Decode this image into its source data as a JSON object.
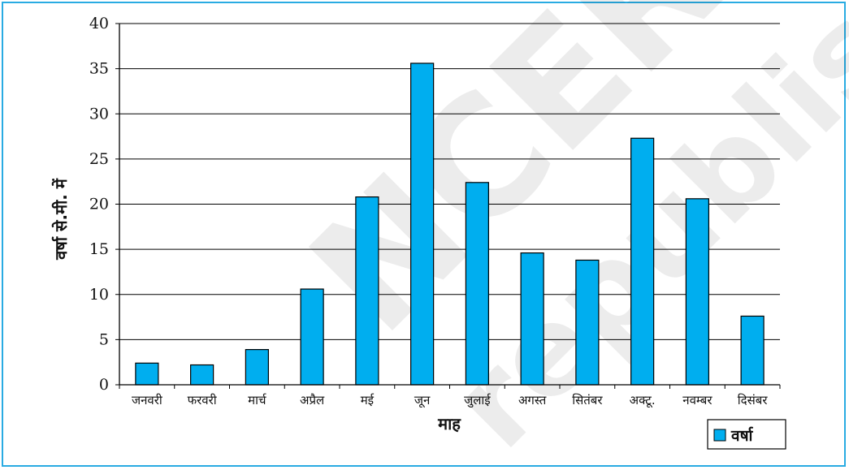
{
  "chart_data": {
    "type": "bar",
    "categories": [
      "जनवरी",
      "फरवरी",
      "मार्च",
      "अप्रैल",
      "मई",
      "जून",
      "जुलाई",
      "अगस्त",
      "सितंबर",
      "अक्टू.",
      "नवम्बर",
      "दिसंबर"
    ],
    "series": [
      {
        "name": "वर्षा",
        "values": [
          2.4,
          2.2,
          3.9,
          10.6,
          20.8,
          35.6,
          22.4,
          14.6,
          13.8,
          27.3,
          20.6,
          7.6
        ],
        "color": "#00aeef"
      }
    ],
    "xlabel": "माह",
    "ylabel": "वर्षा से.मी. में",
    "ylim": [
      0,
      40
    ],
    "yticks": [
      0,
      5,
      10,
      15,
      20,
      25,
      30,
      35,
      40
    ],
    "grid": true,
    "legend_position": "bottom-right",
    "watermark": "NCERT republished"
  }
}
